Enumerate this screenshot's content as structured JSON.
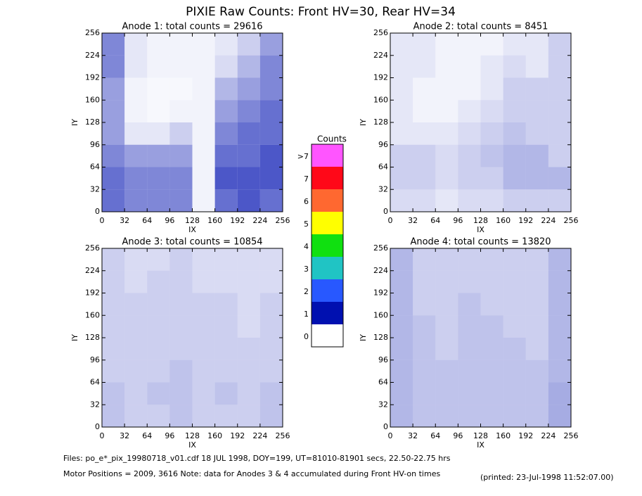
{
  "title": "PIXIE Raw Counts:  Front HV=30, Rear HV=34",
  "colorbar": {
    "title": "Counts",
    "labels": [
      "0",
      "1",
      "2",
      "3",
      "4",
      "5",
      "6",
      "7",
      ">7"
    ],
    "colors": [
      "#ffffff",
      "#0010b0",
      "#2858ff",
      "#20c4c4",
      "#10e010",
      "#ffff00",
      "#ff6830",
      "#ff0818",
      "#ff55ff"
    ]
  },
  "footer": {
    "files": "Files: po_e*_pix_19980718_v01.cdf     18 JUL 1998, DOY=199, UT=81010-81901 secs, 22.50-22.75 hrs",
    "motor": "Motor Positions = 2009, 3616    Note: data for Anodes 3 & 4 accumulated during Front HV-on times",
    "printed": "(printed: 23-Jul-1998 11:52:07.00)"
  },
  "chart_data": [
    {
      "type": "heatmap",
      "title": "Anode 1: total counts = 29616",
      "x_label": "IX",
      "y_label": "IY",
      "color": "#0010b0",
      "xlim": [
        0,
        256
      ],
      "ylim": [
        0,
        256
      ],
      "xticks": [
        0,
        32,
        64,
        96,
        128,
        160,
        192,
        224,
        256
      ],
      "yticks": [
        0,
        32,
        64,
        96,
        128,
        160,
        192,
        224,
        256
      ],
      "z": [
        [
          0.6,
          0.5,
          0.5,
          0.5,
          0.05,
          0.6,
          0.7,
          0.6
        ],
        [
          0.6,
          0.5,
          0.5,
          0.5,
          0.05,
          0.7,
          0.7,
          0.7
        ],
        [
          0.5,
          0.4,
          0.4,
          0.4,
          0.05,
          0.6,
          0.6,
          0.7
        ],
        [
          0.4,
          0.1,
          0.1,
          0.2,
          0.05,
          0.5,
          0.6,
          0.6
        ],
        [
          0.4,
          0.05,
          0.03,
          0.05,
          0.05,
          0.4,
          0.5,
          0.6
        ],
        [
          0.4,
          0.05,
          0.03,
          0.03,
          0.05,
          0.3,
          0.4,
          0.5
        ],
        [
          0.5,
          0.1,
          0.05,
          0.05,
          0.05,
          0.15,
          0.3,
          0.5
        ],
        [
          0.5,
          0.1,
          0.05,
          0.05,
          0.05,
          0.1,
          0.2,
          0.4
        ]
      ]
    },
    {
      "type": "heatmap",
      "title": "Anode 2: total counts = 8451",
      "x_label": "IX",
      "y_label": "IY",
      "color": "#0010b0",
      "xlim": [
        0,
        256
      ],
      "ylim": [
        0,
        256
      ],
      "xticks": [
        0,
        32,
        64,
        96,
        128,
        160,
        192,
        224,
        256
      ],
      "yticks": [
        0,
        32,
        64,
        96,
        128,
        160,
        192,
        224,
        256
      ],
      "z": [
        [
          0.15,
          0.15,
          0.1,
          0.15,
          0.15,
          0.2,
          0.2,
          0.2
        ],
        [
          0.2,
          0.2,
          0.15,
          0.2,
          0.2,
          0.3,
          0.3,
          0.3
        ],
        [
          0.2,
          0.2,
          0.15,
          0.2,
          0.25,
          0.3,
          0.3,
          0.2
        ],
        [
          0.1,
          0.1,
          0.1,
          0.15,
          0.2,
          0.25,
          0.2,
          0.2
        ],
        [
          0.1,
          0.05,
          0.05,
          0.1,
          0.15,
          0.2,
          0.2,
          0.2
        ],
        [
          0.1,
          0.05,
          0.05,
          0.05,
          0.1,
          0.2,
          0.2,
          0.2
        ],
        [
          0.1,
          0.1,
          0.05,
          0.05,
          0.1,
          0.15,
          0.1,
          0.2
        ],
        [
          0.1,
          0.1,
          0.05,
          0.05,
          0.05,
          0.1,
          0.1,
          0.2
        ]
      ]
    },
    {
      "type": "heatmap",
      "title": "Anode 3: total counts = 10854",
      "x_label": "IX",
      "y_label": "IY",
      "color": "#0010b0",
      "xlim": [
        0,
        256
      ],
      "ylim": [
        0,
        256
      ],
      "xticks": [
        0,
        32,
        64,
        96,
        128,
        160,
        192,
        224,
        256
      ],
      "yticks": [
        0,
        32,
        64,
        96,
        128,
        160,
        192,
        224,
        256
      ],
      "z": [
        [
          0.25,
          0.2,
          0.2,
          0.25,
          0.2,
          0.2,
          0.2,
          0.25
        ],
        [
          0.25,
          0.2,
          0.25,
          0.25,
          0.2,
          0.25,
          0.2,
          0.25
        ],
        [
          0.2,
          0.2,
          0.2,
          0.25,
          0.2,
          0.2,
          0.2,
          0.2
        ],
        [
          0.2,
          0.2,
          0.2,
          0.2,
          0.2,
          0.2,
          0.2,
          0.2
        ],
        [
          0.2,
          0.2,
          0.2,
          0.2,
          0.2,
          0.2,
          0.15,
          0.2
        ],
        [
          0.2,
          0.2,
          0.2,
          0.2,
          0.2,
          0.2,
          0.15,
          0.2
        ],
        [
          0.2,
          0.15,
          0.2,
          0.2,
          0.15,
          0.15,
          0.15,
          0.15
        ],
        [
          0.2,
          0.15,
          0.15,
          0.2,
          0.15,
          0.15,
          0.15,
          0.15
        ]
      ]
    },
    {
      "type": "heatmap",
      "title": "Anode 4: total counts = 13820",
      "x_label": "IX",
      "y_label": "IY",
      "color": "#0010b0",
      "xlim": [
        0,
        256
      ],
      "ylim": [
        0,
        256
      ],
      "xticks": [
        0,
        32,
        64,
        96,
        128,
        160,
        192,
        224,
        256
      ],
      "yticks": [
        0,
        32,
        64,
        96,
        128,
        160,
        192,
        224,
        256
      ],
      "z": [
        [
          0.3,
          0.25,
          0.25,
          0.25,
          0.25,
          0.25,
          0.25,
          0.35
        ],
        [
          0.3,
          0.25,
          0.25,
          0.25,
          0.25,
          0.25,
          0.25,
          0.35
        ],
        [
          0.3,
          0.25,
          0.25,
          0.25,
          0.25,
          0.25,
          0.25,
          0.3
        ],
        [
          0.3,
          0.25,
          0.2,
          0.25,
          0.25,
          0.25,
          0.2,
          0.3
        ],
        [
          0.3,
          0.25,
          0.2,
          0.25,
          0.25,
          0.2,
          0.2,
          0.3
        ],
        [
          0.3,
          0.2,
          0.2,
          0.25,
          0.2,
          0.2,
          0.2,
          0.3
        ],
        [
          0.3,
          0.2,
          0.2,
          0.2,
          0.2,
          0.2,
          0.2,
          0.3
        ],
        [
          0.3,
          0.2,
          0.2,
          0.2,
          0.2,
          0.2,
          0.2,
          0.3
        ]
      ]
    }
  ]
}
